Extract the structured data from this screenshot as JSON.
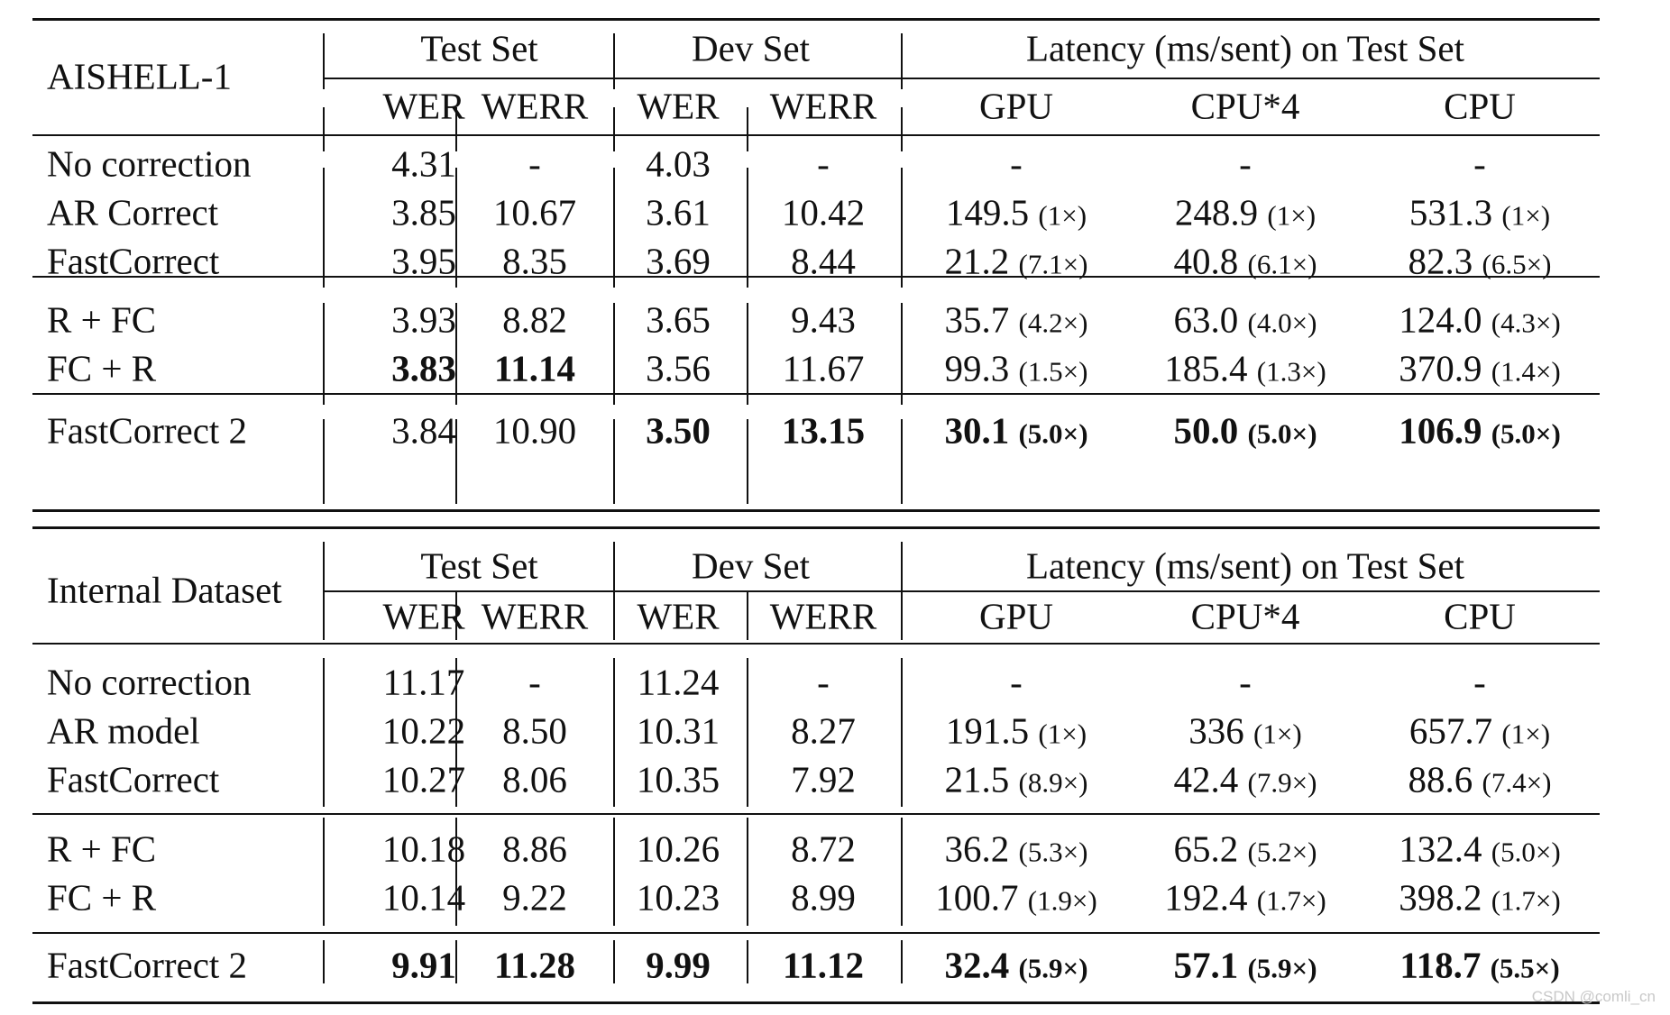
{
  "tables": [
    {
      "dataset": "AISHELL-1",
      "group_headers": [
        "Test Set",
        "Dev Set",
        "Latency (ms/sent) on Test Set"
      ],
      "sub_headers": [
        "WER",
        "WERR",
        "WER",
        "WERR",
        "GPU",
        "CPU*4",
        "CPU"
      ],
      "rows": [
        {
          "name": "No correction",
          "cells": [
            {
              "v": "4.31"
            },
            {
              "v": "-"
            },
            {
              "v": "4.03"
            },
            {
              "v": "-"
            },
            {
              "v": "-"
            },
            {
              "v": "-"
            },
            {
              "v": "-"
            }
          ]
        },
        {
          "name": "AR Correct",
          "cells": [
            {
              "v": "3.85"
            },
            {
              "v": "10.67"
            },
            {
              "v": "3.61"
            },
            {
              "v": "10.42"
            },
            {
              "v": "149.5",
              "s": "(1×)"
            },
            {
              "v": "248.9",
              "s": "(1×)"
            },
            {
              "v": "531.3",
              "s": "(1×)"
            }
          ]
        },
        {
          "name": "FastCorrect",
          "cells": [
            {
              "v": "3.95"
            },
            {
              "v": "8.35"
            },
            {
              "v": "3.69"
            },
            {
              "v": "8.44"
            },
            {
              "v": "21.2",
              "s": "(7.1×)"
            },
            {
              "v": "40.8",
              "s": "(6.1×)"
            },
            {
              "v": "82.3",
              "s": "(6.5×)"
            }
          ]
        },
        {
          "name": "R + FC",
          "cells": [
            {
              "v": "3.93"
            },
            {
              "v": "8.82"
            },
            {
              "v": "3.65"
            },
            {
              "v": "9.43"
            },
            {
              "v": "35.7",
              "s": "(4.2×)"
            },
            {
              "v": "63.0",
              "s": "(4.0×)"
            },
            {
              "v": "124.0",
              "s": "(4.3×)"
            }
          ]
        },
        {
          "name": "FC + R",
          "cells": [
            {
              "v": "3.83",
              "b": true
            },
            {
              "v": "11.14",
              "b": true
            },
            {
              "v": "3.56"
            },
            {
              "v": "11.67"
            },
            {
              "v": "99.3",
              "s": "(1.5×)"
            },
            {
              "v": "185.4",
              "s": "(1.3×)"
            },
            {
              "v": "370.9",
              "s": "(1.4×)"
            }
          ]
        },
        {
          "name": "FastCorrect 2",
          "cells": [
            {
              "v": "3.84"
            },
            {
              "v": "10.90"
            },
            {
              "v": "3.50",
              "b": true
            },
            {
              "v": "13.15",
              "b": true
            },
            {
              "v": "30.1",
              "s": "(5.0×)",
              "b": true
            },
            {
              "v": "50.0",
              "s": "(5.0×)",
              "b": true
            },
            {
              "v": "106.9",
              "s": "(5.0×)",
              "b": true
            }
          ]
        }
      ]
    },
    {
      "dataset": "Internal Dataset",
      "group_headers": [
        "Test Set",
        "Dev Set",
        "Latency (ms/sent) on Test Set"
      ],
      "sub_headers": [
        "WER",
        "WERR",
        "WER",
        "WERR",
        "GPU",
        "CPU*4",
        "CPU"
      ],
      "rows": [
        {
          "name": "No correction",
          "cells": [
            {
              "v": "11.17"
            },
            {
              "v": "-"
            },
            {
              "v": "11.24"
            },
            {
              "v": "-"
            },
            {
              "v": "-"
            },
            {
              "v": "-"
            },
            {
              "v": "-"
            }
          ]
        },
        {
          "name": "AR model",
          "cells": [
            {
              "v": "10.22"
            },
            {
              "v": "8.50"
            },
            {
              "v": "10.31"
            },
            {
              "v": "8.27"
            },
            {
              "v": "191.5",
              "s": "(1×)"
            },
            {
              "v": "336",
              "s": "(1×)"
            },
            {
              "v": "657.7",
              "s": "(1×)"
            }
          ]
        },
        {
          "name": "FastCorrect",
          "cells": [
            {
              "v": "10.27"
            },
            {
              "v": "8.06"
            },
            {
              "v": "10.35"
            },
            {
              "v": "7.92"
            },
            {
              "v": "21.5",
              "s": "(8.9×)"
            },
            {
              "v": "42.4",
              "s": "(7.9×)"
            },
            {
              "v": "88.6",
              "s": "(7.4×)"
            }
          ]
        },
        {
          "name": "R + FC",
          "cells": [
            {
              "v": "10.18"
            },
            {
              "v": "8.86"
            },
            {
              "v": "10.26"
            },
            {
              "v": "8.72"
            },
            {
              "v": "36.2",
              "s": "(5.3×)"
            },
            {
              "v": "65.2",
              "s": "(5.2×)"
            },
            {
              "v": "132.4",
              "s": "(5.0×)"
            }
          ]
        },
        {
          "name": "FC + R",
          "cells": [
            {
              "v": "10.14"
            },
            {
              "v": "9.22"
            },
            {
              "v": "10.23"
            },
            {
              "v": "8.99"
            },
            {
              "v": "100.7",
              "s": "(1.9×)"
            },
            {
              "v": "192.4",
              "s": "(1.7×)"
            },
            {
              "v": "398.2",
              "s": "(1.7×)"
            }
          ]
        },
        {
          "name": "FastCorrect 2",
          "cells": [
            {
              "v": "9.91",
              "b": true
            },
            {
              "v": "11.28",
              "b": true
            },
            {
              "v": "9.99",
              "b": true
            },
            {
              "v": "11.12",
              "b": true
            },
            {
              "v": "32.4",
              "s": "(5.9×)",
              "b": true
            },
            {
              "v": "57.1",
              "s": "(5.9×)",
              "b": true
            },
            {
              "v": "118.7",
              "s": "(5.5×)",
              "b": true
            }
          ]
        }
      ]
    }
  ],
  "watermark": "CSDN @comli_cn"
}
